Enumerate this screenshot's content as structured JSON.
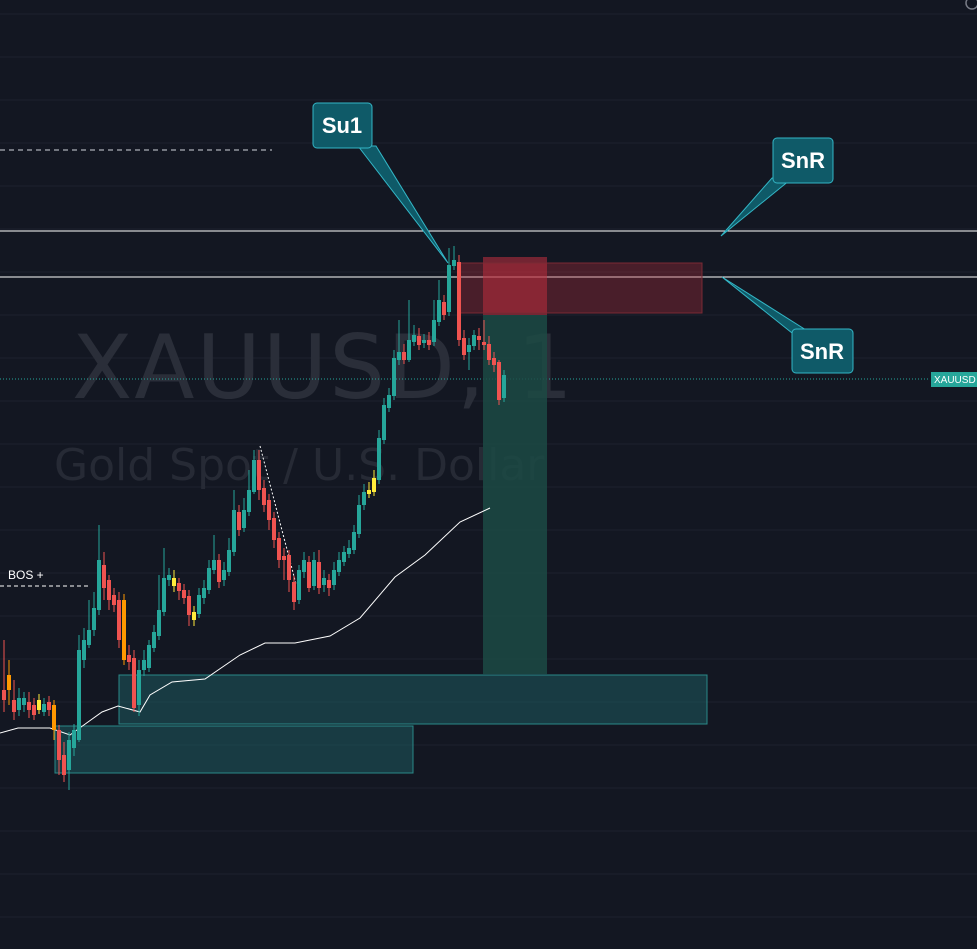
{
  "chart_data": {
    "type": "candlestick",
    "symbol_watermark": "XAUUSD, 1",
    "description_watermark": "Gold Spot / U.S. Dollar",
    "price_tag": "XAUUSD",
    "annotations": {
      "su1": "Su1",
      "snr_upper": "SnR",
      "snr_lower": "SnR",
      "bos": "BOS +"
    },
    "colors": {
      "background": "#131722",
      "bullish": "#26a69a",
      "bearish": "#ef5350",
      "highlight_bull": "#ffeb3b",
      "highlight_bear": "#ff9800",
      "callout": "#0f5a68",
      "callout_border": "#33b6c6",
      "demand_zone": "#1e5a5e",
      "stop_zone": "#f23645",
      "target_zone": "#1a4a44",
      "ma_line": "#ffffff"
    },
    "grid": true,
    "legend": "none"
  }
}
